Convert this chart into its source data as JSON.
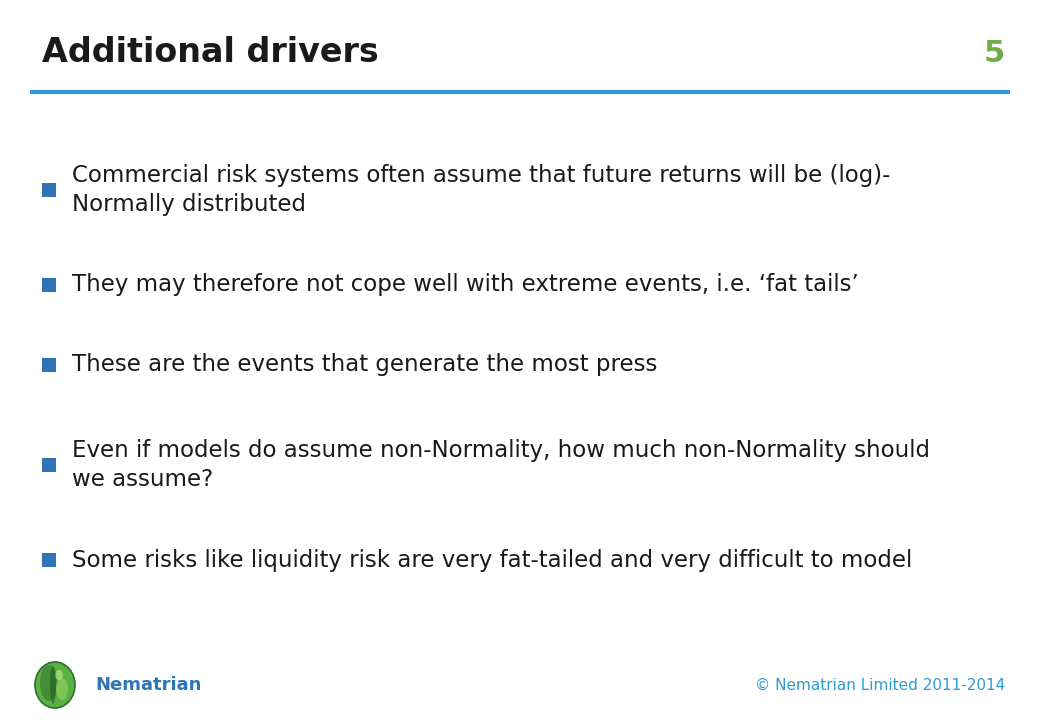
{
  "title": "Additional drivers",
  "slide_number": "5",
  "title_color": "#1a1a1a",
  "title_fontsize": 24,
  "slide_number_color": "#70ad47",
  "slide_number_fontsize": 22,
  "header_line_color": "#2E9BD6",
  "background_color": "#ffffff",
  "bullet_color": "#2E75B6",
  "bullet_text_color": "#1a1a1a",
  "bullet_fontsize": 16.5,
  "footer_text": "© Nematrian Limited 2011-2014",
  "footer_color": "#2E9BD6",
  "footer_fontsize": 11,
  "brand_name": "Nematrian",
  "brand_color": "#2E75B6",
  "brand_fontsize": 13,
  "bullets": [
    "Commercial risk systems often assume that future returns will be (log)-\nNormally distributed",
    "They may therefore not cope well with extreme events, i.e. ‘fat tails’",
    "These are the events that generate the most press",
    "Even if models do assume non-Normality, how much non-Normality should\nwe assume?",
    "Some risks like liquidity risk are very fat-tailed and very difficult to model"
  ]
}
